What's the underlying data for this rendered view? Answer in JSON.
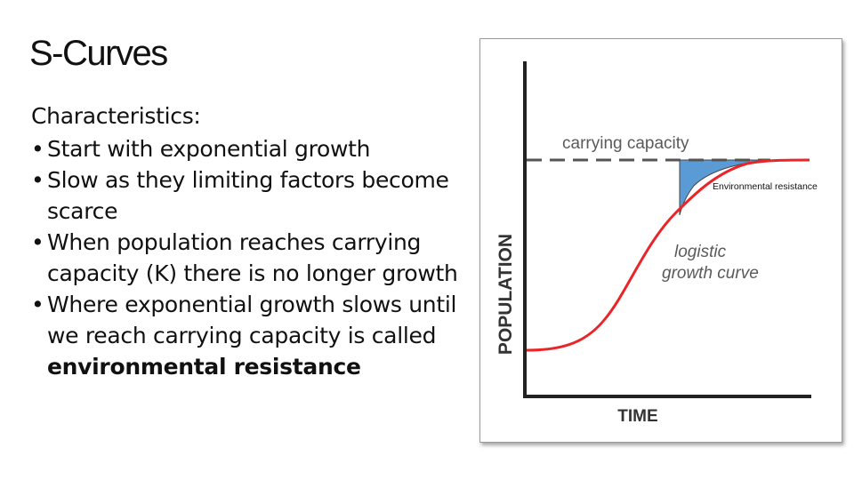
{
  "slide": {
    "title": "S-Curves",
    "subtitle": "Characteristics:",
    "bullets": [
      "Start with exponential growth",
      "Slow as they limiting factors become scarce",
      "When population reaches carrying capacity (K) there is no longer growth"
    ],
    "last_bullet_prefix": "Where exponential growth slows until we reach carrying capacity is called ",
    "last_bullet_bold": "environmental resistance"
  },
  "figure": {
    "y_axis_label": "POPULATION",
    "x_axis_label": "TIME",
    "carrying_capacity_label": "carrying capacity",
    "curve_label_line1": "logistic",
    "curve_label_line2": "growth curve",
    "shaded_region_label": "Environmental resistance",
    "colors": {
      "curve": "#e8262a",
      "shade": "#5b9bd5",
      "dashed_line": "#555555",
      "label_gray": "#5a5a5a"
    }
  }
}
